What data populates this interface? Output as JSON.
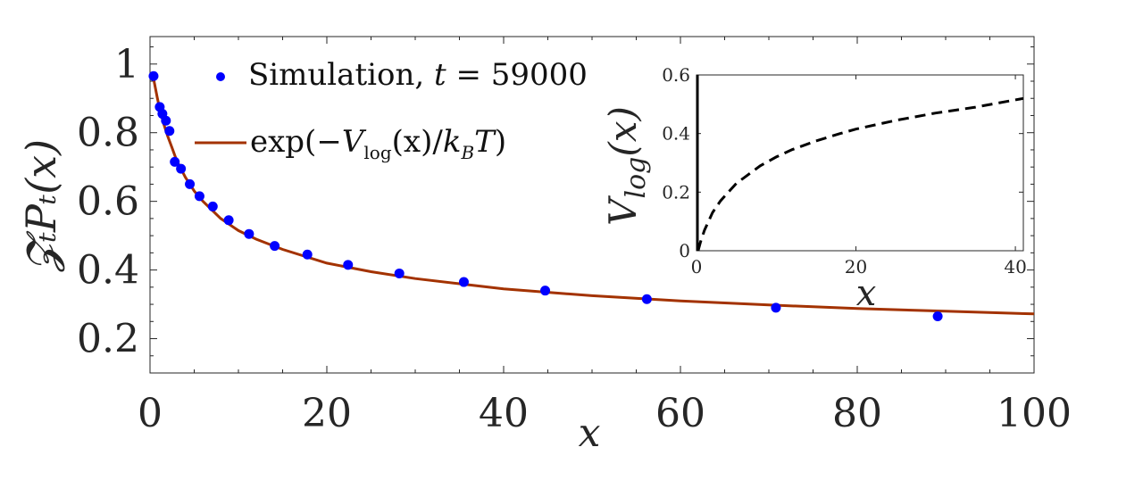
{
  "chart_data": [
    {
      "type": "scatter",
      "title": "",
      "xlabel": "x",
      "ylabel": "𝓩ₜPₜ(x)",
      "xlim": [
        0,
        100
      ],
      "ylim": [
        0.1,
        1.08
      ],
      "xticks": [
        "0",
        "20",
        "40",
        "60",
        "80",
        "100"
      ],
      "xtick_values": [
        0,
        20,
        40,
        60,
        80,
        100
      ],
      "yticks": [
        "0.2",
        "0.4",
        "0.6",
        "0.8",
        "1"
      ],
      "ytick_values": [
        0.2,
        0.4,
        0.6,
        0.8,
        1.0
      ],
      "grid": false,
      "legend_position": "top-left",
      "series": [
        {
          "name": "Simulation, t = 59000",
          "kind": "scatter",
          "color": "#0000ff",
          "x": [
            0.4,
            1.1,
            1.4,
            1.8,
            2.2,
            2.8,
            3.5,
            4.5,
            5.6,
            7.1,
            8.9,
            11.2,
            14.1,
            17.8,
            22.4,
            28.2,
            35.5,
            44.7,
            56.2,
            70.8,
            89.1
          ],
          "y": [
            0.965,
            0.875,
            0.855,
            0.835,
            0.805,
            0.715,
            0.695,
            0.65,
            0.615,
            0.585,
            0.545,
            0.505,
            0.47,
            0.445,
            0.415,
            0.39,
            0.365,
            0.34,
            0.315,
            0.29,
            0.265
          ]
        },
        {
          "name": "exp(−V_log(x)/k_B T)",
          "kind": "line",
          "color": "#a33200",
          "x": [
            0.3,
            0.5,
            0.8,
            1,
            1.5,
            2,
            2.5,
            3,
            4,
            5,
            6,
            8,
            10,
            12,
            15,
            20,
            25,
            30,
            35,
            40,
            50,
            60,
            70,
            80,
            90,
            100
          ],
          "y": [
            0.975,
            0.945,
            0.905,
            0.88,
            0.83,
            0.79,
            0.755,
            0.72,
            0.67,
            0.63,
            0.6,
            0.55,
            0.515,
            0.49,
            0.46,
            0.42,
            0.395,
            0.375,
            0.36,
            0.345,
            0.325,
            0.31,
            0.298,
            0.288,
            0.28,
            0.272
          ]
        }
      ],
      "legend": {
        "simulation_label": "Simulation, ",
        "simulation_var": "t",
        "simulation_eq": " = 59000",
        "fit_prefix": "exp(−",
        "fit_V": "V",
        "fit_sub": "log",
        "fit_arg": "(x)",
        "fit_div": "/",
        "fit_k": "k",
        "fit_ksub": "B",
        "fit_T": "T",
        "fit_close": ")"
      }
    },
    {
      "type": "line",
      "title": "",
      "xlabel": "x",
      "ylabel": "V_log(x)",
      "ylabel_main": "V",
      "ylabel_sub": "log",
      "ylabel_arg": "(x)",
      "xlim": [
        0,
        41
      ],
      "ylim": [
        0,
        0.6
      ],
      "xticks": [
        "0",
        "20",
        "40"
      ],
      "xtick_values": [
        0,
        20,
        40
      ],
      "yticks": [
        "0",
        "0.2",
        "0.4",
        "0.6"
      ],
      "ytick_values": [
        0,
        0.2,
        0.4,
        0.6
      ],
      "grid": false,
      "series": [
        {
          "kind": "dashed-line",
          "color": "#000000",
          "x": [
            0.2,
            0.5,
            1,
            1.5,
            2,
            3,
            4,
            5,
            6,
            8,
            10,
            12,
            15,
            18,
            20,
            25,
            30,
            35,
            41
          ],
          "y": [
            0.0,
            0.03,
            0.07,
            0.1,
            0.13,
            0.17,
            0.2,
            0.23,
            0.25,
            0.29,
            0.32,
            0.345,
            0.375,
            0.4,
            0.415,
            0.445,
            0.47,
            0.49,
            0.52
          ]
        },
        {
          "kind": "solid-wall",
          "color": "#000000",
          "x": [
            0,
            0
          ],
          "y": [
            0,
            0.6
          ]
        }
      ]
    }
  ]
}
